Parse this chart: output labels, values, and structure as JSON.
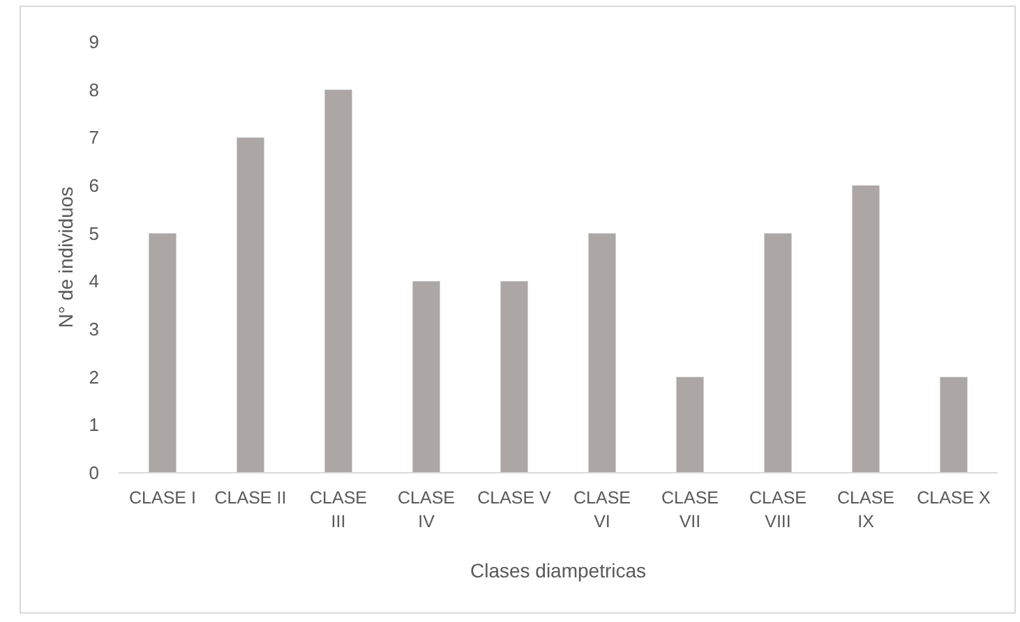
{
  "chart_data": {
    "type": "bar",
    "xlabel": "Clases diampetricas",
    "ylabel": "N° de individuos",
    "categories": [
      "CLASE I",
      "CLASE II",
      "CLASE III",
      "CLASE IV",
      "CLASE V",
      "CLASE VI",
      "CLASE VII",
      "CLASE VIII",
      "CLASE IX",
      "CLASE X"
    ],
    "values": [
      5,
      7,
      8,
      4,
      4,
      5,
      2,
      5,
      6,
      2
    ],
    "color": "#aca6a4",
    "ylim": [
      0,
      9
    ],
    "yticks": [
      0,
      1,
      2,
      3,
      4,
      5,
      6,
      7,
      8,
      9
    ],
    "grid": false
  }
}
